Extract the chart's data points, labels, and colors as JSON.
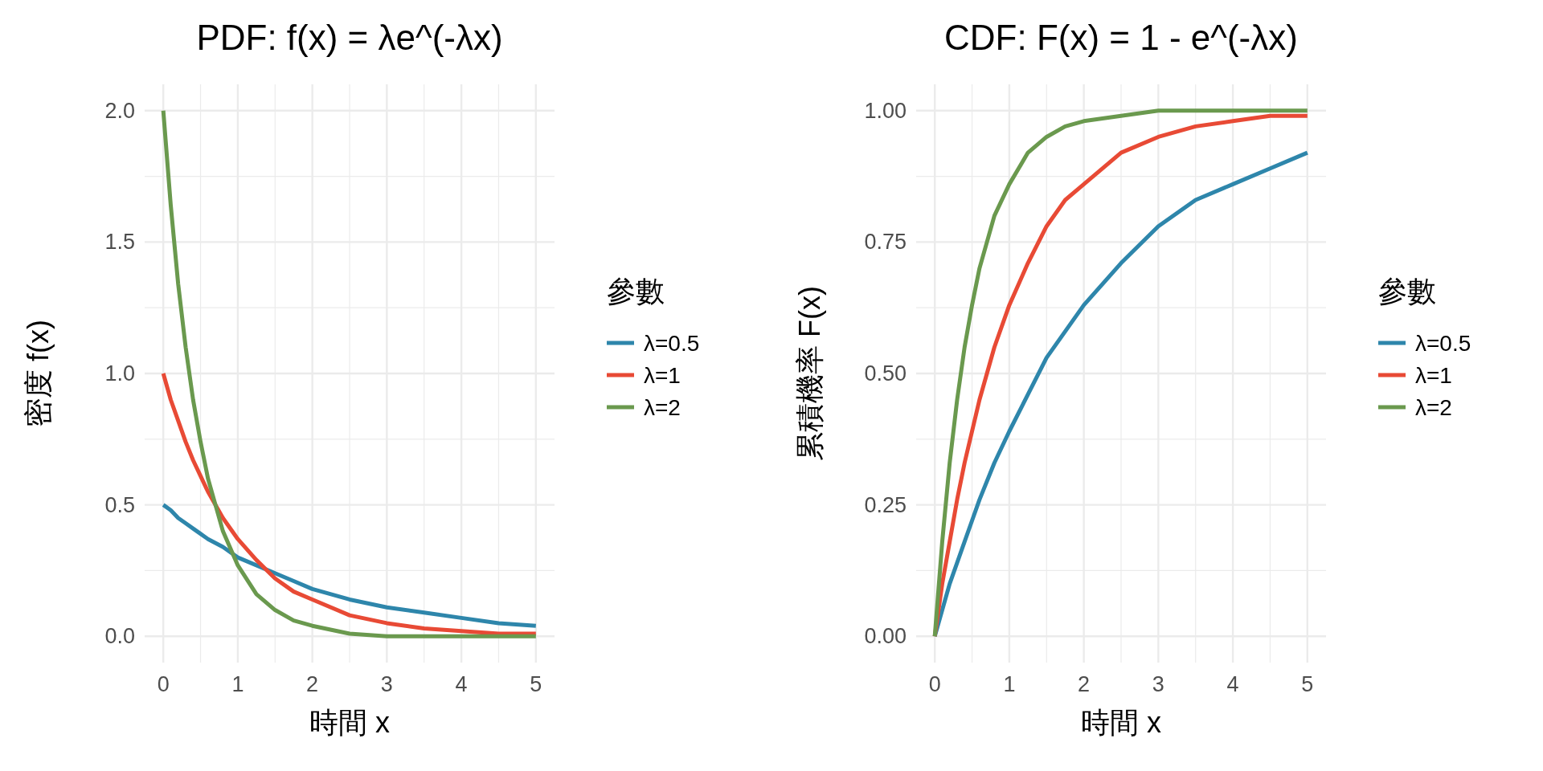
{
  "chart_data": [
    {
      "type": "line",
      "title": "PDF: f(x) = λe^(-λx)",
      "xlabel": "時間 x",
      "ylabel": "密度 f(x)",
      "legend_title": "參數",
      "legend": "right",
      "grid": true,
      "x": [
        0,
        0.1,
        0.2,
        0.3,
        0.4,
        0.5,
        0.6,
        0.8,
        1,
        1.25,
        1.5,
        1.75,
        2,
        2.5,
        3,
        3.5,
        4,
        4.5,
        5
      ],
      "xlim": [
        -0.25,
        5.25
      ],
      "xticks": [
        0,
        1,
        2,
        3,
        4,
        5
      ],
      "ylim": [
        -0.1,
        2.1
      ],
      "yticks": [
        {
          "value": 0,
          "label": "0.0"
        },
        {
          "value": 0.5,
          "label": "0.5"
        },
        {
          "value": 1,
          "label": "1.0"
        },
        {
          "value": 1.5,
          "label": "1.5"
        },
        {
          "value": 2,
          "label": "2.0"
        }
      ],
      "series": [
        {
          "name": "λ=0.5",
          "color": "#2e86ab",
          "values": [
            0.5,
            0.48,
            0.45,
            0.43,
            0.41,
            0.39,
            0.37,
            0.34,
            0.3,
            0.27,
            0.24,
            0.21,
            0.18,
            0.14,
            0.11,
            0.09,
            0.07,
            0.05,
            0.04
          ]
        },
        {
          "name": "λ=1",
          "color": "#e84a35",
          "values": [
            1,
            0.9,
            0.82,
            0.74,
            0.67,
            0.61,
            0.55,
            0.45,
            0.37,
            0.29,
            0.22,
            0.17,
            0.14,
            0.08,
            0.05,
            0.03,
            0.02,
            0.01,
            0.01
          ]
        },
        {
          "name": "λ=2",
          "color": "#6a994e",
          "values": [
            2,
            1.64,
            1.34,
            1.1,
            0.9,
            0.74,
            0.6,
            0.4,
            0.27,
            0.16,
            0.1,
            0.06,
            0.04,
            0.01,
            0,
            0,
            0,
            0,
            0
          ]
        }
      ]
    },
    {
      "type": "line",
      "title": "CDF: F(x) = 1 - e^(-λx)",
      "xlabel": "時間 x",
      "ylabel": "累積機率 F(x)",
      "legend_title": "參數",
      "legend": "right",
      "grid": true,
      "x": [
        0,
        0.1,
        0.2,
        0.3,
        0.4,
        0.5,
        0.6,
        0.8,
        1,
        1.25,
        1.5,
        1.75,
        2,
        2.5,
        3,
        3.5,
        4,
        4.5,
        5
      ],
      "xlim": [
        -0.25,
        5.25
      ],
      "xticks": [
        0,
        1,
        2,
        3,
        4,
        5
      ],
      "ylim": [
        -0.05,
        1.05
      ],
      "yticks": [
        {
          "value": 0,
          "label": "0.00"
        },
        {
          "value": 0.25,
          "label": "0.25"
        },
        {
          "value": 0.5,
          "label": "0.50"
        },
        {
          "value": 0.75,
          "label": "0.75"
        },
        {
          "value": 1,
          "label": "1.00"
        }
      ],
      "series": [
        {
          "name": "λ=0.5",
          "color": "#2e86ab",
          "values": [
            0,
            0.05,
            0.1,
            0.14,
            0.18,
            0.22,
            0.26,
            0.33,
            0.39,
            0.46,
            0.53,
            0.58,
            0.63,
            0.71,
            0.78,
            0.83,
            0.86,
            0.89,
            0.92
          ]
        },
        {
          "name": "λ=1",
          "color": "#e84a35",
          "values": [
            0,
            0.1,
            0.18,
            0.26,
            0.33,
            0.39,
            0.45,
            0.55,
            0.63,
            0.71,
            0.78,
            0.83,
            0.86,
            0.92,
            0.95,
            0.97,
            0.98,
            0.99,
            0.99
          ]
        },
        {
          "name": "λ=2",
          "color": "#6a994e",
          "values": [
            0,
            0.18,
            0.33,
            0.45,
            0.55,
            0.63,
            0.7,
            0.8,
            0.86,
            0.92,
            0.95,
            0.97,
            0.98,
            0.99,
            1,
            1,
            1,
            1,
            1
          ]
        }
      ]
    }
  ]
}
